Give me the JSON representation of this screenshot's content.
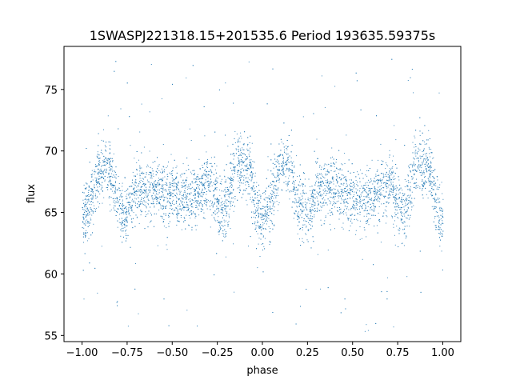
{
  "chart_data": {
    "type": "scatter",
    "title": "1SWASPJ221318.15+201535.6 Period 193635.59375s",
    "xlabel": "phase",
    "ylabel": "flux",
    "xlim": [
      -1.1,
      1.1
    ],
    "ylim": [
      54.5,
      78.5
    ],
    "x_ticks": [
      -1.0,
      -0.75,
      -0.5,
      -0.25,
      0.0,
      0.25,
      0.5,
      0.75,
      1.0
    ],
    "x_tick_labels": [
      "−1.00",
      "−0.75",
      "−0.50",
      "−0.25",
      "0.00",
      "0.25",
      "0.50",
      "0.75",
      "1.00"
    ],
    "y_ticks": [
      55,
      60,
      65,
      70,
      75
    ],
    "y_tick_labels": [
      "55",
      "60",
      "65",
      "70",
      "75"
    ],
    "grid": false,
    "marker_color": "#1f77b4",
    "series": [
      {
        "phase_profile": [
          {
            "x": -1.0,
            "y": 64.5
          },
          {
            "x": -0.95,
            "y": 66.0
          },
          {
            "x": -0.9,
            "y": 68.7
          },
          {
            "x": -0.85,
            "y": 68.5
          },
          {
            "x": -0.8,
            "y": 65.5
          },
          {
            "x": -0.75,
            "y": 64.8
          },
          {
            "x": -0.7,
            "y": 67.0
          },
          {
            "x": -0.6,
            "y": 67.0
          },
          {
            "x": -0.5,
            "y": 66.3
          },
          {
            "x": -0.4,
            "y": 66.0
          },
          {
            "x": -0.3,
            "y": 67.5
          },
          {
            "x": -0.22,
            "y": 64.8
          },
          {
            "x": -0.15,
            "y": 68.7
          },
          {
            "x": -0.08,
            "y": 68.7
          },
          {
            "x": -0.02,
            "y": 64.5
          },
          {
            "x": 0.0,
            "y": 64.5
          },
          {
            "x": 0.05,
            "y": 66.0
          },
          {
            "x": 0.1,
            "y": 68.7
          },
          {
            "x": 0.15,
            "y": 68.5
          },
          {
            "x": 0.2,
            "y": 65.5
          },
          {
            "x": 0.25,
            "y": 64.8
          },
          {
            "x": 0.3,
            "y": 67.0
          },
          {
            "x": 0.4,
            "y": 67.0
          },
          {
            "x": 0.5,
            "y": 66.3
          },
          {
            "x": 0.6,
            "y": 66.0
          },
          {
            "x": 0.7,
            "y": 67.5
          },
          {
            "x": 0.78,
            "y": 64.8
          },
          {
            "x": 0.85,
            "y": 68.7
          },
          {
            "x": 0.92,
            "y": 68.7
          },
          {
            "x": 0.98,
            "y": 64.5
          },
          {
            "x": 1.0,
            "y": 64.5
          }
        ]
      }
    ]
  }
}
